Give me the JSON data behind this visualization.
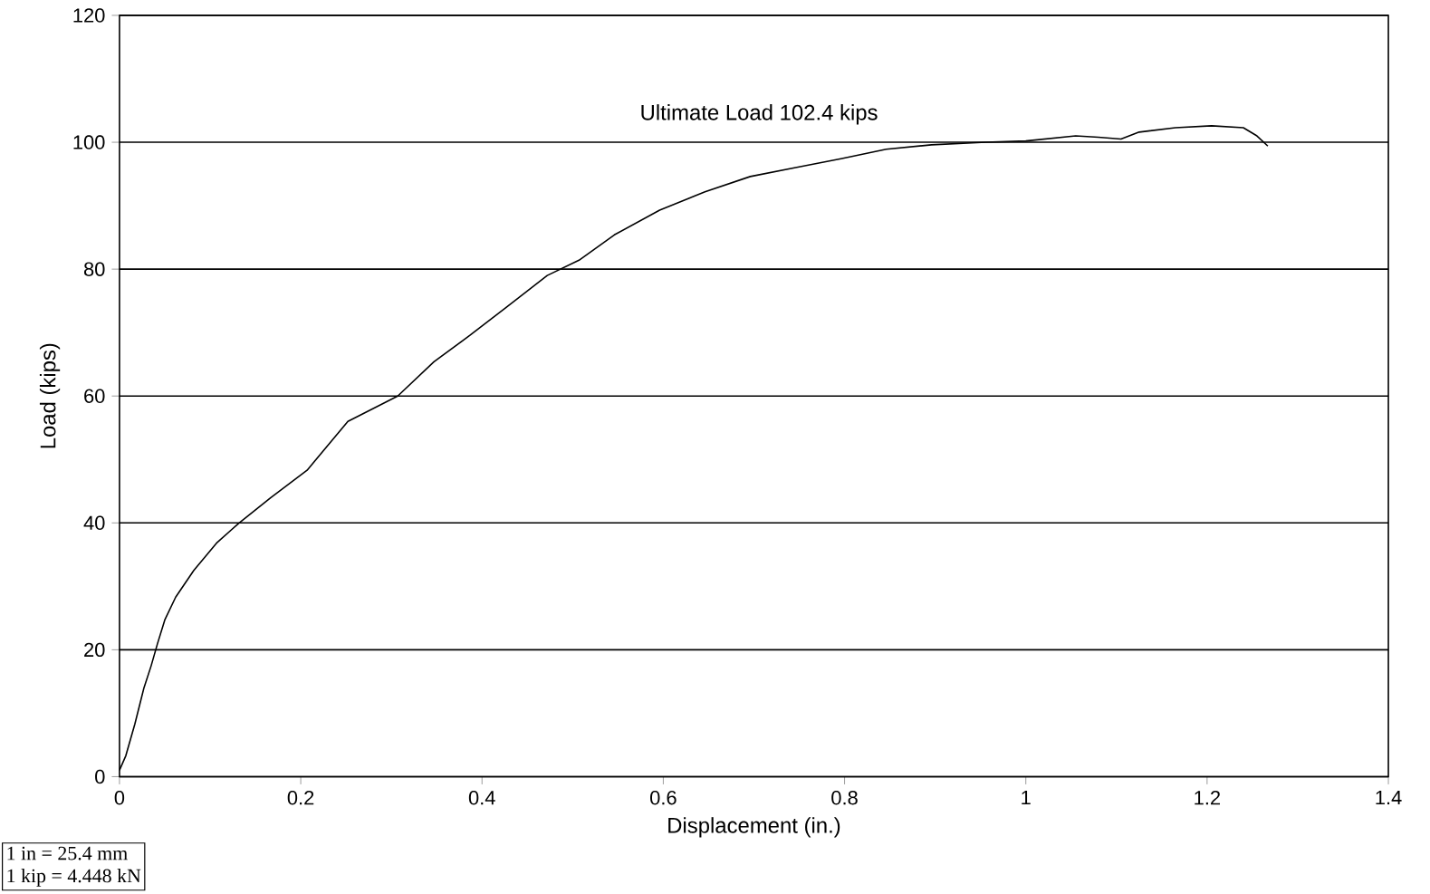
{
  "chart_data": {
    "type": "line",
    "xlabel": "Displacement (in.)",
    "ylabel": "Load (kips)",
    "xlim": [
      0,
      1.4
    ],
    "ylim": [
      0,
      120
    ],
    "xticks": [
      0,
      0.2,
      0.4,
      0.6,
      0.8,
      1,
      1.2,
      1.4
    ],
    "yticks": [
      0,
      20,
      40,
      60,
      80,
      100,
      120
    ],
    "grid": "y",
    "x": [
      0,
      0.007,
      0.017,
      0.027,
      0.035,
      0.042,
      0.05,
      0.062,
      0.082,
      0.107,
      0.132,
      0.167,
      0.207,
      0.252,
      0.307,
      0.347,
      0.387,
      0.427,
      0.472,
      0.507,
      0.546,
      0.596,
      0.646,
      0.696,
      0.746,
      0.796,
      0.846,
      0.896,
      0.956,
      1.0,
      1.055,
      1.08,
      1.105,
      1.125,
      1.165,
      1.205,
      1.24,
      1.255,
      1.267
    ],
    "values": [
      1,
      3.3,
      8.3,
      14,
      17.5,
      21,
      24.7,
      28.3,
      32.5,
      36.8,
      40,
      44,
      48.3,
      56,
      60,
      65.4,
      69.6,
      74,
      79,
      81.4,
      85.4,
      89.3,
      92.2,
      94.6,
      96,
      97.4,
      98.9,
      99.6,
      100,
      100.2,
      101,
      100.8,
      100.5,
      101.6,
      102.3,
      102.6,
      102.3,
      101,
      99.4
    ],
    "color": "#000000",
    "annotations": [
      "Ultimate  Load   102.4 kips",
      "1 in = 25.4 mm",
      "1 kip = 4.448 kN"
    ]
  }
}
